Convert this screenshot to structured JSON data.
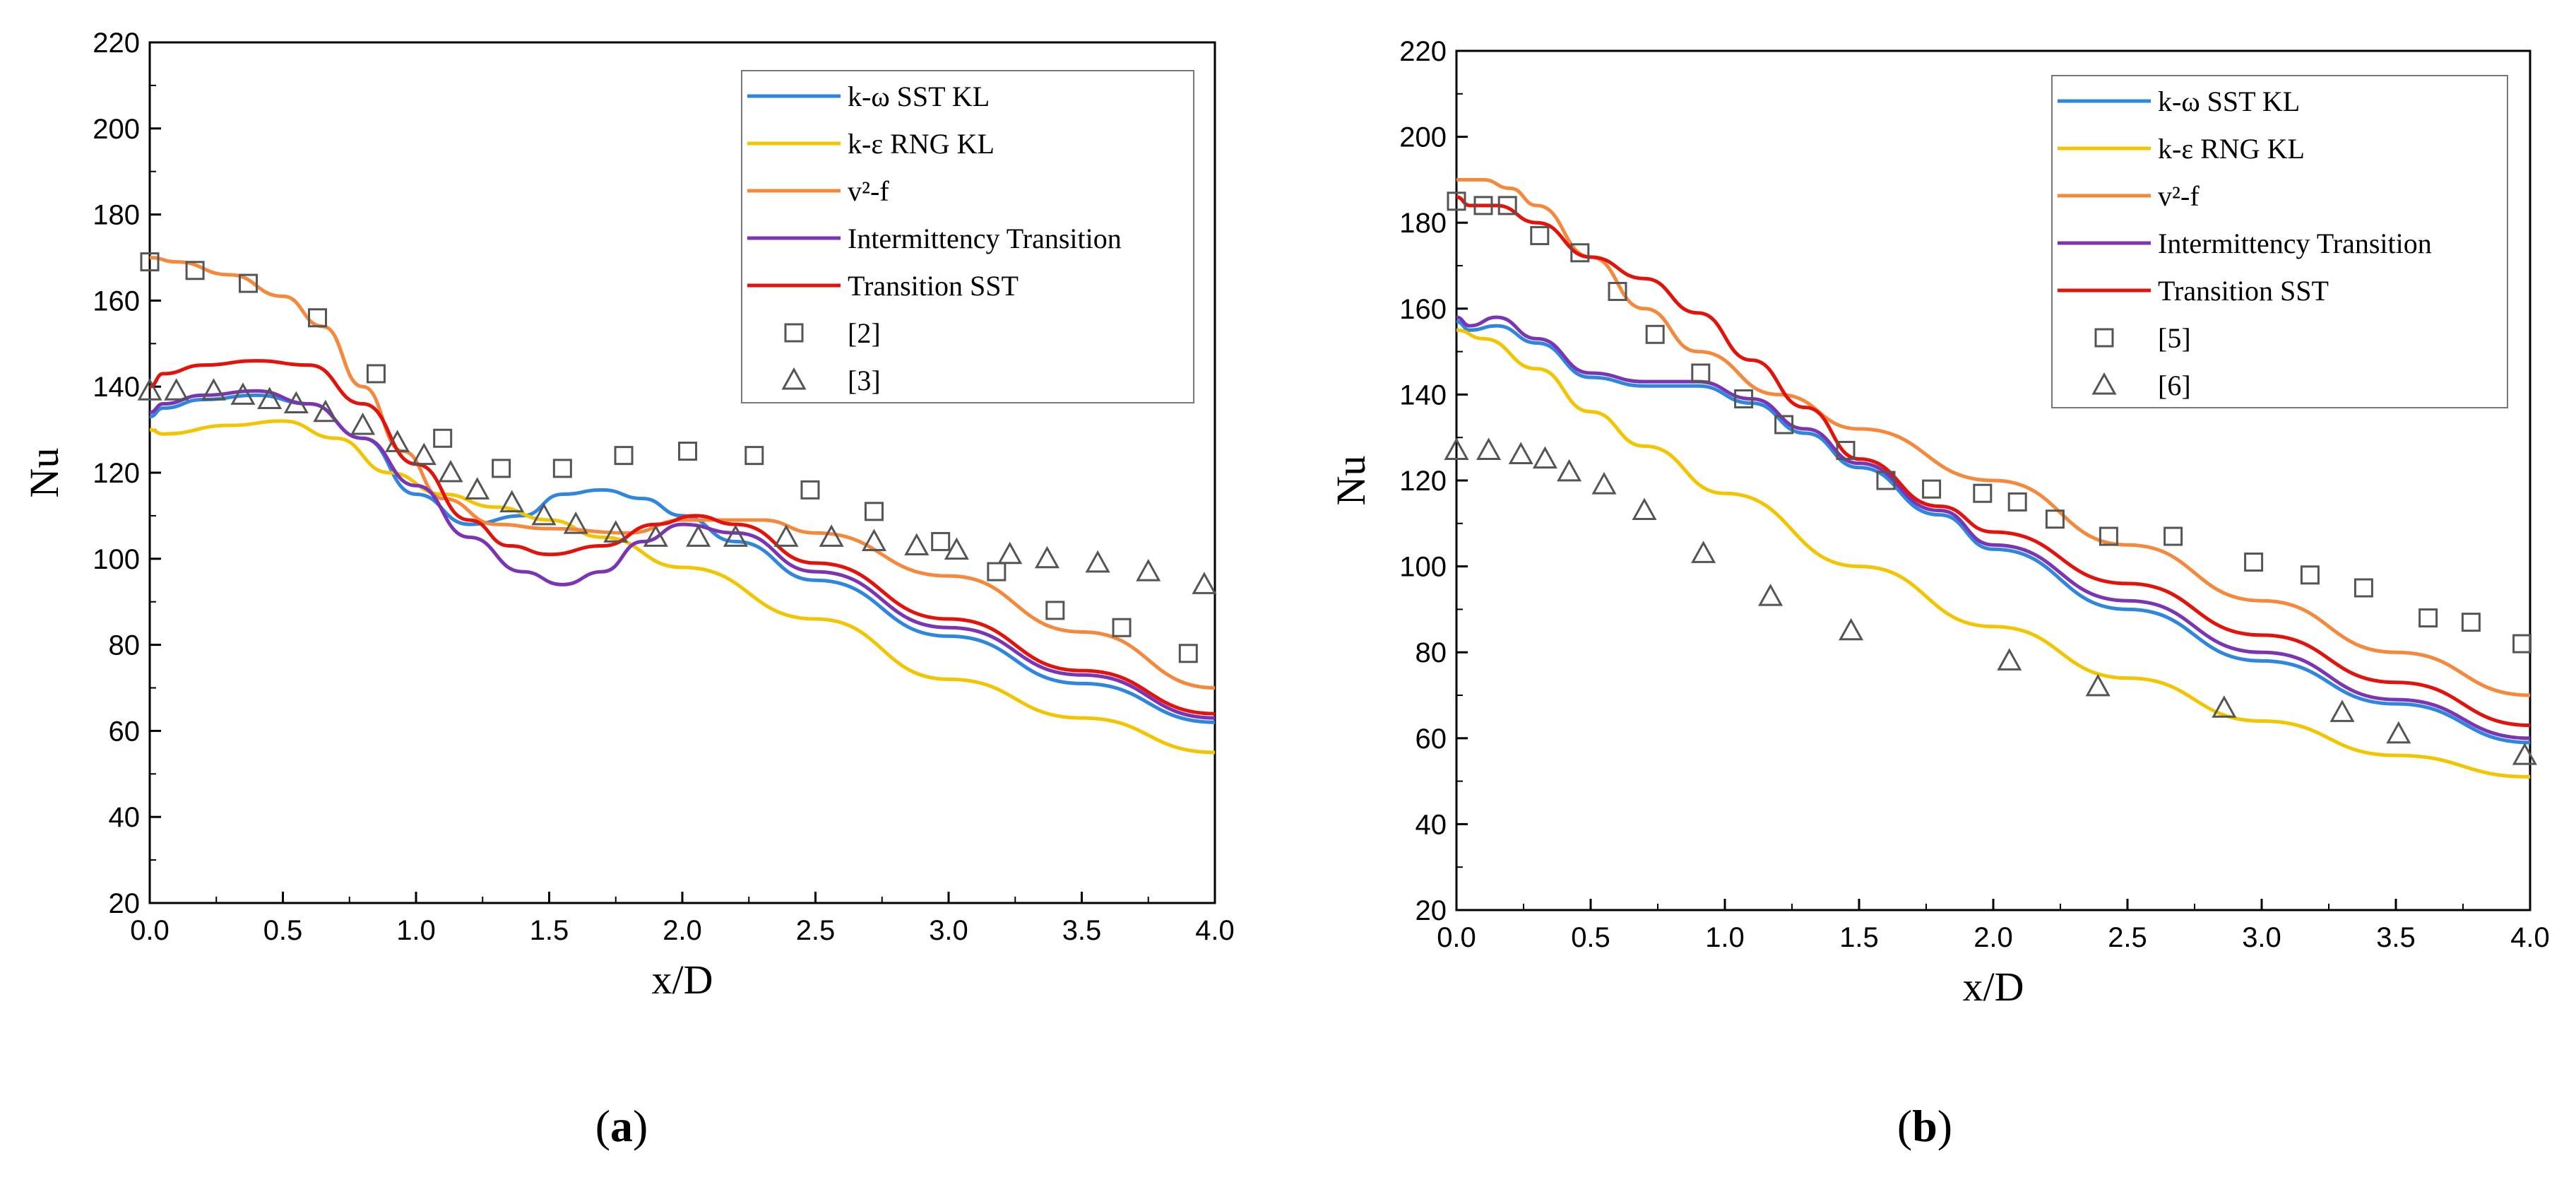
{
  "chart_data": [
    {
      "type": "line",
      "panel_label": "a",
      "xlabel": "x/D",
      "ylabel": "Nu",
      "xlim": [
        0,
        4
      ],
      "ylim": [
        20,
        220
      ],
      "xticks": [
        "0.0",
        "0.5",
        "1.0",
        "1.5",
        "2.0",
        "2.5",
        "3.0",
        "3.5",
        "4.0"
      ],
      "yticks": [
        "20",
        "40",
        "60",
        "80",
        "100",
        "120",
        "140",
        "160",
        "180",
        "200",
        "220"
      ],
      "legend_position": "top-right",
      "series": [
        {
          "name": "k-ω SST KL",
          "color": "#2e86de",
          "x": [
            0.0,
            0.05,
            0.2,
            0.4,
            0.6,
            0.8,
            1.0,
            1.2,
            1.4,
            1.55,
            1.7,
            1.85,
            2.0,
            2.2,
            2.5,
            3.0,
            3.5,
            4.0
          ],
          "y": [
            133,
            135,
            137,
            138,
            136,
            128,
            115,
            108,
            110,
            115,
            116,
            114,
            110,
            104,
            95,
            82,
            71,
            62
          ]
        },
        {
          "name": "k-ε RNG KL",
          "color": "#f2c500",
          "x": [
            0.0,
            0.05,
            0.3,
            0.5,
            0.7,
            0.9,
            1.1,
            1.3,
            1.5,
            1.7,
            2.0,
            2.5,
            3.0,
            3.5,
            4.0
          ],
          "y": [
            130,
            129,
            131,
            132,
            128,
            120,
            115,
            112,
            109,
            105,
            98,
            86,
            72,
            63,
            55
          ]
        },
        {
          "name": "v²-f",
          "color": "#f5883b",
          "x": [
            0.0,
            0.1,
            0.3,
            0.5,
            0.65,
            0.8,
            0.95,
            1.1,
            1.3,
            1.5,
            1.8,
            2.0,
            2.3,
            2.5,
            3.0,
            3.5,
            4.0
          ],
          "y": [
            170,
            169,
            166,
            161,
            154,
            140,
            125,
            114,
            108,
            107,
            106,
            109,
            109,
            106,
            96,
            83,
            70
          ]
        },
        {
          "name": "Intermittency Transition",
          "color": "#7b35b4",
          "x": [
            0.0,
            0.05,
            0.2,
            0.4,
            0.6,
            0.8,
            1.0,
            1.2,
            1.4,
            1.55,
            1.7,
            1.85,
            2.0,
            2.2,
            2.5,
            3.0,
            3.5,
            4.0
          ],
          "y": [
            134,
            136,
            138,
            139,
            136,
            128,
            117,
            105,
            97,
            94,
            97,
            104,
            108,
            106,
            97,
            84,
            73,
            63
          ]
        },
        {
          "name": "Transition SST",
          "color": "#e3120b",
          "x": [
            0.0,
            0.05,
            0.2,
            0.4,
            0.6,
            0.8,
            1.0,
            1.2,
            1.35,
            1.5,
            1.7,
            1.9,
            2.05,
            2.2,
            2.5,
            3.0,
            3.5,
            4.0
          ],
          "y": [
            140,
            143,
            145,
            146,
            145,
            136,
            122,
            109,
            103,
            101,
            103,
            108,
            110,
            108,
            99,
            86,
            74,
            64
          ]
        }
      ],
      "markers": [
        {
          "name": "[2]",
          "symbol": "square",
          "x": [
            0.0,
            0.17,
            0.37,
            0.63,
            0.85,
            1.1,
            1.32,
            1.55,
            1.78,
            2.02,
            2.27,
            2.48,
            2.72,
            2.97,
            3.18,
            3.4,
            3.65,
            3.9
          ],
          "y": [
            169,
            167,
            164,
            156,
            143,
            128,
            121,
            121,
            124,
            125,
            124,
            116,
            111,
            104,
            97,
            88,
            84,
            78
          ]
        },
        {
          "name": "[3]",
          "symbol": "triangle",
          "x": [
            0.0,
            0.1,
            0.24,
            0.35,
            0.45,
            0.55,
            0.66,
            0.8,
            0.93,
            1.03,
            1.13,
            1.23,
            1.36,
            1.48,
            1.6,
            1.75,
            1.9,
            2.06,
            2.2,
            2.39,
            2.56,
            2.72,
            2.88,
            3.03,
            3.23,
            3.37,
            3.56,
            3.75,
            3.96
          ],
          "y": [
            139,
            139,
            139,
            138,
            137,
            136,
            134,
            131,
            127,
            124,
            120,
            116,
            113,
            110,
            108,
            106,
            105,
            105,
            105,
            105,
            105,
            104,
            103,
            102,
            101,
            100,
            99,
            97,
            94
          ]
        }
      ]
    },
    {
      "type": "line",
      "panel_label": "b",
      "xlabel": "x/D",
      "ylabel": "Nu",
      "xlim": [
        0,
        4
      ],
      "ylim": [
        20,
        220
      ],
      "xticks": [
        "0.0",
        "0.5",
        "1.0",
        "1.5",
        "2.0",
        "2.5",
        "3.0",
        "3.5",
        "4.0"
      ],
      "yticks": [
        "20",
        "40",
        "60",
        "80",
        "100",
        "120",
        "140",
        "160",
        "180",
        "200",
        "220"
      ],
      "legend_position": "top-right",
      "series": [
        {
          "name": "k-ω SST KL",
          "color": "#2e86de",
          "x": [
            0.0,
            0.05,
            0.15,
            0.3,
            0.5,
            0.7,
            0.9,
            1.1,
            1.3,
            1.5,
            1.8,
            2.0,
            2.5,
            3.0,
            3.5,
            4.0
          ],
          "y": [
            157,
            155,
            156,
            152,
            144,
            142,
            142,
            138,
            131,
            123,
            112,
            104,
            90,
            78,
            68,
            59
          ]
        },
        {
          "name": "k-ε RNG KL",
          "color": "#f2c500",
          "x": [
            0.0,
            0.1,
            0.3,
            0.5,
            0.7,
            1.0,
            1.5,
            2.0,
            2.5,
            3.0,
            3.5,
            4.0
          ],
          "y": [
            155,
            153,
            146,
            136,
            128,
            117,
            100,
            86,
            74,
            64,
            56,
            51
          ]
        },
        {
          "name": "v²-f",
          "color": "#f5883b",
          "x": [
            0.0,
            0.1,
            0.2,
            0.3,
            0.5,
            0.7,
            0.9,
            1.2,
            1.5,
            2.0,
            2.5,
            3.0,
            3.5,
            4.0
          ],
          "y": [
            190,
            190,
            188,
            184,
            172,
            160,
            150,
            140,
            132,
            120,
            105,
            92,
            80,
            70
          ]
        },
        {
          "name": "Intermittency Transition",
          "color": "#7b35b4",
          "x": [
            0.0,
            0.05,
            0.15,
            0.3,
            0.5,
            0.7,
            0.9,
            1.1,
            1.3,
            1.5,
            1.8,
            2.0,
            2.5,
            3.0,
            3.5,
            4.0
          ],
          "y": [
            158,
            156,
            158,
            153,
            145,
            143,
            143,
            139,
            132,
            124,
            113,
            105,
            92,
            80,
            69,
            60
          ]
        },
        {
          "name": "Transition SST",
          "color": "#e3120b",
          "x": [
            0.0,
            0.05,
            0.15,
            0.3,
            0.5,
            0.7,
            0.9,
            1.1,
            1.3,
            1.5,
            1.8,
            2.0,
            2.5,
            3.0,
            3.5,
            4.0
          ],
          "y": [
            186,
            184,
            184,
            180,
            172,
            167,
            159,
            148,
            137,
            125,
            114,
            108,
            96,
            84,
            73,
            63
          ]
        }
      ],
      "markers": [
        {
          "name": "[5]",
          "symbol": "square",
          "x": [
            0.0,
            0.1,
            0.19,
            0.31,
            0.46,
            0.6,
            0.74,
            0.91,
            1.07,
            1.22,
            1.45,
            1.6,
            1.77,
            1.96,
            2.09,
            2.23,
            2.43,
            2.67,
            2.97,
            3.18,
            3.38,
            3.62,
            3.78,
            3.97
          ],
          "y": [
            185,
            184,
            184,
            177,
            173,
            164,
            154,
            145,
            139,
            133,
            127,
            120,
            118,
            117,
            115,
            111,
            107,
            107,
            101,
            98,
            95,
            88,
            87,
            82
          ]
        },
        {
          "name": "[6]",
          "symbol": "triangle",
          "x": [
            0.0,
            0.12,
            0.24,
            0.33,
            0.42,
            0.55,
            0.7,
            0.92,
            1.17,
            1.47,
            2.06,
            2.39,
            2.86,
            3.3,
            3.51,
            3.98
          ],
          "y": [
            127,
            127,
            126,
            125,
            122,
            119,
            113,
            103,
            93,
            85,
            78,
            72,
            67,
            66,
            61,
            56
          ]
        }
      ]
    }
  ]
}
